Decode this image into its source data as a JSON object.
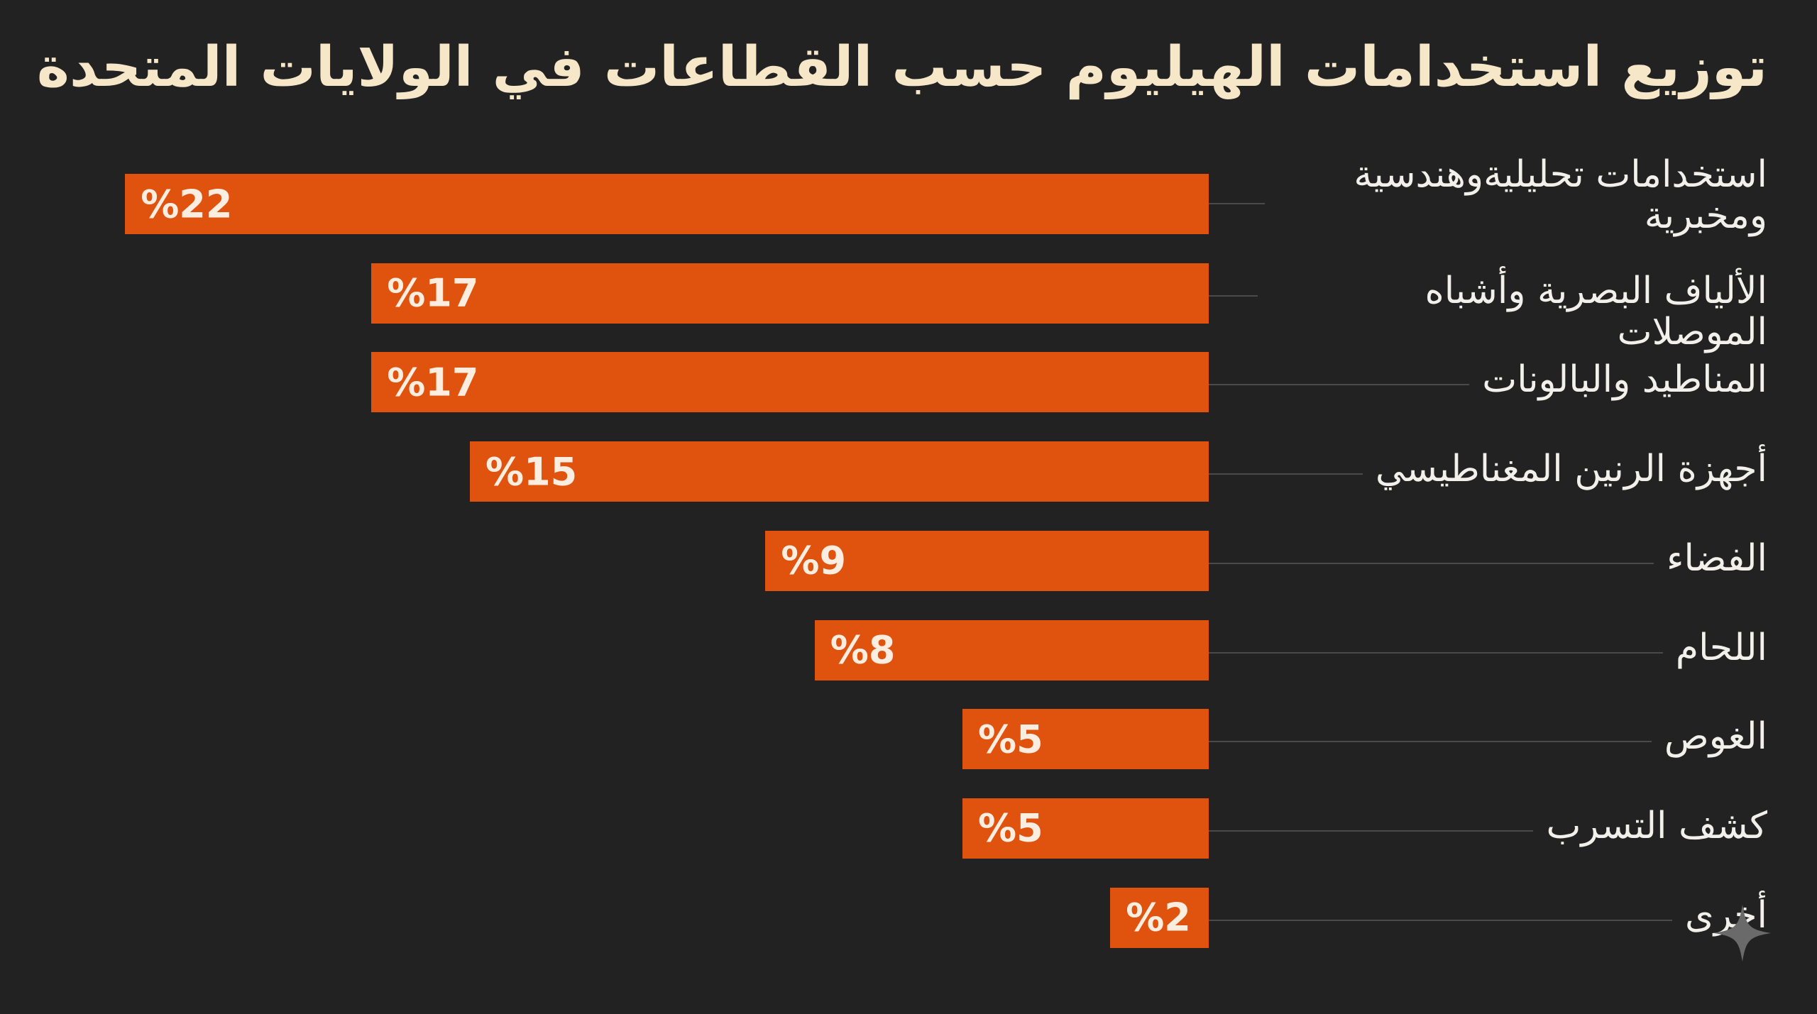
{
  "chart_data": {
    "type": "bar",
    "orientation": "horizontal",
    "title": "توزيع استخدامات الهيليوم حسب القطاعات في الولايات المتحدة",
    "categories": [
      "استخدامات تحليليةوهندسية ومخبرية",
      "الألياف البصرية وأشباه الموصلات",
      "المناطيد والبالونات",
      "أجهزة الرنين المغناطيسي",
      "الفضاء",
      "اللحام",
      "الغوص",
      "كشف التسرب",
      "أخرى"
    ],
    "values": [
      22,
      17,
      17,
      15,
      9,
      8,
      5,
      5,
      2
    ],
    "data_labels": [
      "%22",
      "%17",
      "%17",
      "%15",
      "%9",
      "%8",
      "%5",
      "%5",
      "%2"
    ],
    "unit": "%",
    "grid": false,
    "colors": {
      "bar": "#e0530f",
      "background": "#222222",
      "title": "#f6e7c9"
    }
  }
}
